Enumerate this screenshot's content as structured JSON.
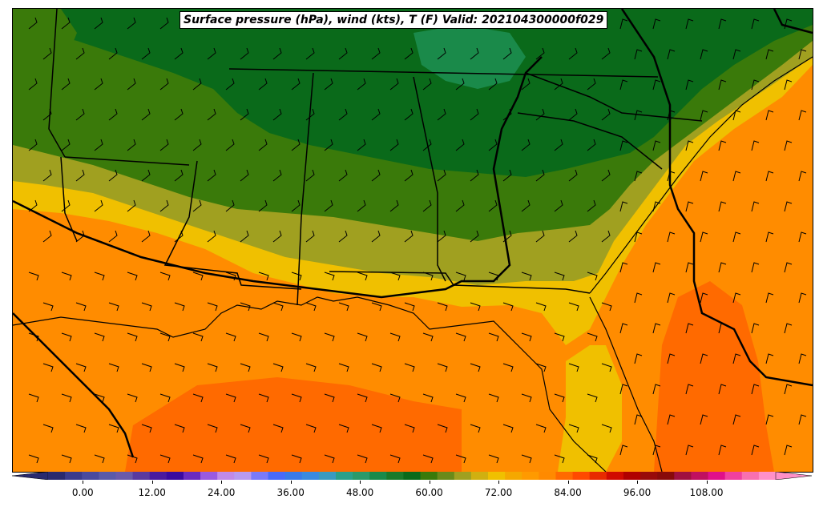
{
  "title": "Surface pressure (hPa), wind (kts), T (F) Valid: 202104300000f029",
  "colorbar": {
    "min": -6,
    "max": 120,
    "step": 3,
    "tick_labels": [
      "0.00",
      "12.00",
      "24.00",
      "36.00",
      "48.00",
      "60.00",
      "72.00",
      "84.00",
      "96.00",
      "108.00"
    ],
    "tick_values": [
      0,
      12,
      24,
      36,
      48,
      60,
      72,
      84,
      96,
      108
    ],
    "colors": [
      "#2a2a6e",
      "#3b3b8c",
      "#4a4a9e",
      "#5a5aa8",
      "#6a5aaa",
      "#5a3aa0",
      "#4a1aa0",
      "#3a0aa0",
      "#6a2ac0",
      "#9a5ae0",
      "#c08ae8",
      "#b89af0",
      "#7a7af8",
      "#4a6af8",
      "#3a7ae8",
      "#3a8ae0",
      "#3a9ac0",
      "#2aa08a",
      "#2a9a6a",
      "#1a8a4a",
      "#1a7a2a",
      "#0a6a1a",
      "#3a7a0a",
      "#6a8a1a",
      "#a0a020",
      "#d0b010",
      "#f0c000",
      "#f5a800",
      "#ff9a00",
      "#ff8a00",
      "#ff6a00",
      "#ff4a00",
      "#e82a00",
      "#d00a00",
      "#b00000",
      "#980a0a",
      "#880a0a",
      "#a01040",
      "#c01060",
      "#e0108a",
      "#f040a0",
      "#f870b0",
      "#ff90c8"
    ]
  },
  "regions_colors": {
    "dark_green": "#0a6a1a",
    "green": "#1a7a2a",
    "olive_green": "#3a7a0a",
    "khaki": "#a0a020",
    "yellow": "#f0c000",
    "orange_light": "#f5a800",
    "orange": "#ff8c00",
    "orange_dark": "#ff6a00"
  }
}
